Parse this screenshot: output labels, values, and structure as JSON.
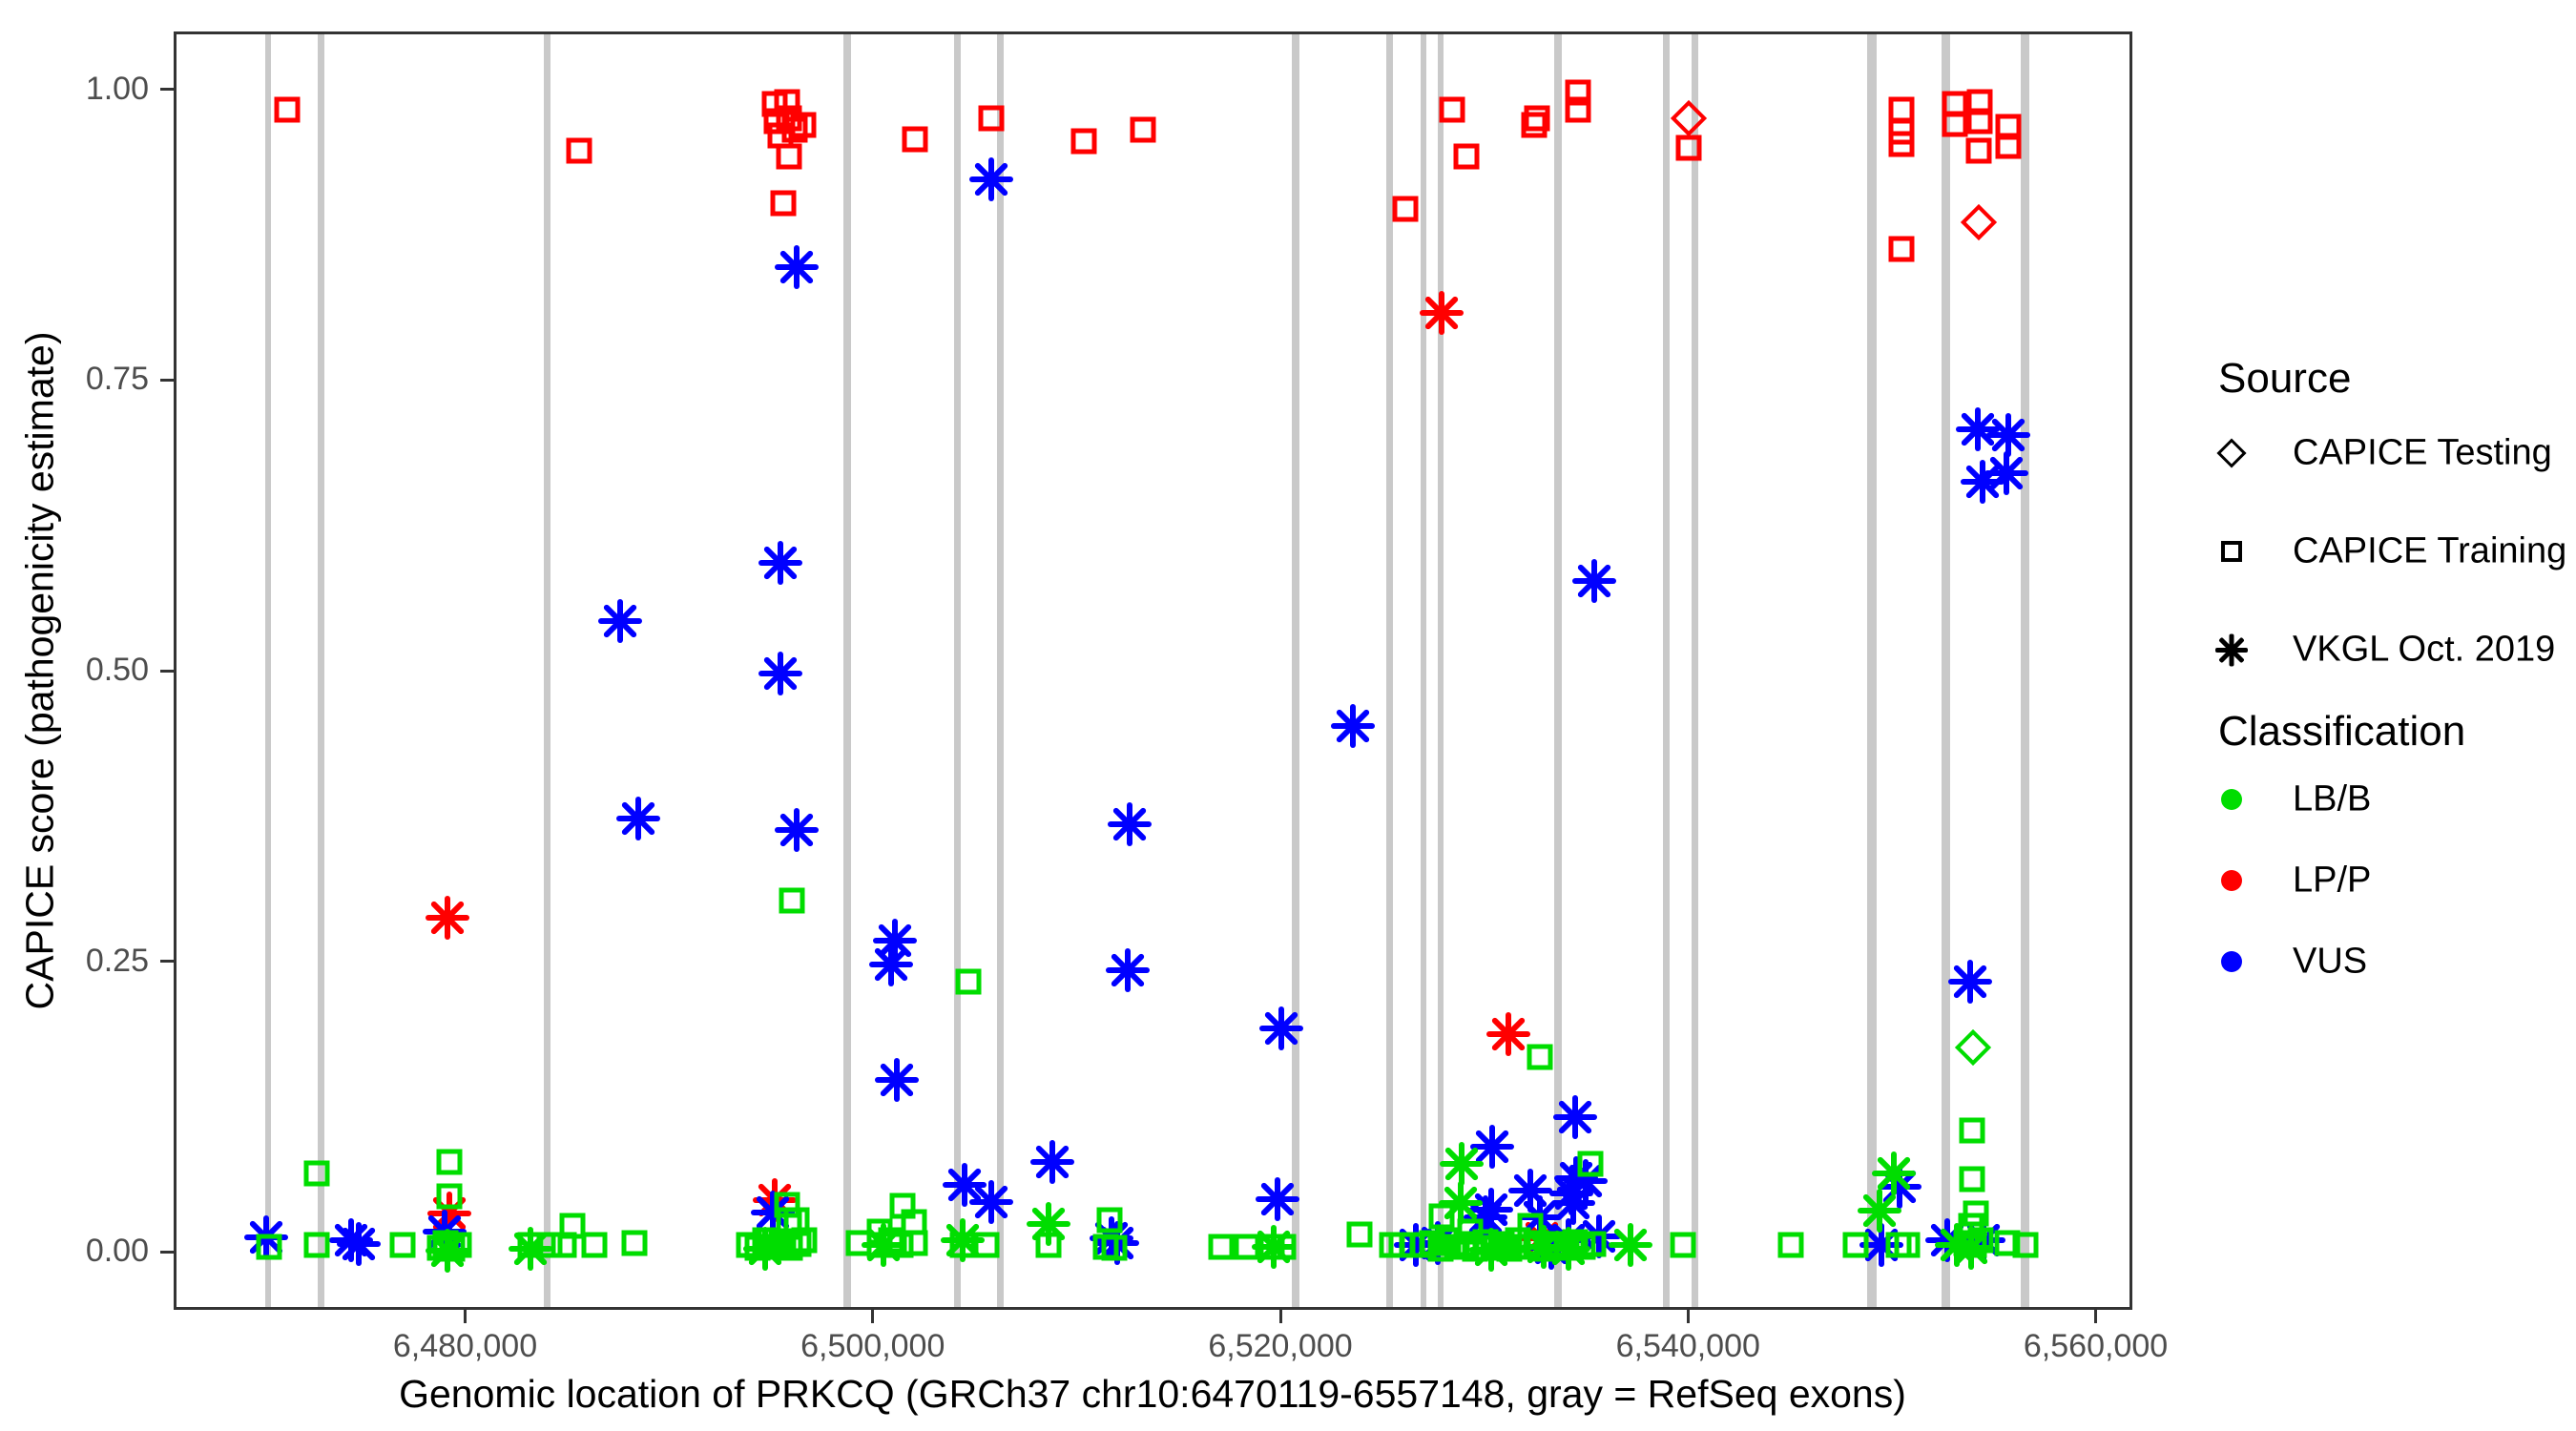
{
  "chart_data": {
    "type": "scatter",
    "xlabel": "Genomic location of PRKCQ (GRCh37 chr10:6470119-6557148, gray = RefSeq exons)",
    "ylabel": "CAPICE score (pathogenicity estimate)",
    "xlim": [
      6465700,
      6561800
    ],
    "ylim": [
      -0.05,
      1.05
    ],
    "grid": "off",
    "x_ticks": [
      {
        "value": 6480000,
        "label": "6,480,000"
      },
      {
        "value": 6500000,
        "label": "6,500,000"
      },
      {
        "value": 6520000,
        "label": "6,520,000"
      },
      {
        "value": 6540000,
        "label": "6,540,000"
      },
      {
        "value": 6560000,
        "label": "6,560,000"
      }
    ],
    "y_ticks": [
      {
        "value": 0.0,
        "label": "0.00"
      },
      {
        "value": 0.25,
        "label": "0.25"
      },
      {
        "value": 0.5,
        "label": "0.50"
      },
      {
        "value": 0.75,
        "label": "0.75"
      },
      {
        "value": 1.0,
        "label": "1.00"
      }
    ],
    "legend_position": "right",
    "legend": {
      "source_title": "Source",
      "source_items": [
        {
          "label": "CAPICE Testing",
          "marker": "diamond",
          "code": "test"
        },
        {
          "label": "CAPICE Training",
          "marker": "square",
          "code": "train"
        },
        {
          "label": "VKGL Oct. 2019",
          "marker": "asterisk",
          "code": "vkgl"
        }
      ],
      "classification_title": "Classification",
      "classification_items": [
        {
          "label": "LB/B",
          "color": "#00DD00",
          "code": "LB"
        },
        {
          "label": "LP/P",
          "color": "#FF0000",
          "code": "LP"
        },
        {
          "label": "VUS",
          "color": "#0000FF",
          "code": "VUS"
        }
      ]
    },
    "colors": {
      "LB": "#00DD00",
      "LP": "#FF0000",
      "VUS": "#0000FF",
      "exon": "#c9c9c9"
    },
    "exons_note": "gray vertical bars = RefSeq exons",
    "exons": [
      {
        "pos": 6470200,
        "w": 6
      },
      {
        "pos": 6472800,
        "w": 7
      },
      {
        "pos": 6483900,
        "w": 7
      },
      {
        "pos": 6498600,
        "w": 8
      },
      {
        "pos": 6504000,
        "w": 7
      },
      {
        "pos": 6506100,
        "w": 7
      },
      {
        "pos": 6520600,
        "w": 8
      },
      {
        "pos": 6525200,
        "w": 7
      },
      {
        "pos": 6526900,
        "w": 6
      },
      {
        "pos": 6527700,
        "w": 6
      },
      {
        "pos": 6533500,
        "w": 8
      },
      {
        "pos": 6538800,
        "w": 7
      },
      {
        "pos": 6540200,
        "w": 7
      },
      {
        "pos": 6548900,
        "w": 10
      },
      {
        "pos": 6552500,
        "w": 9
      },
      {
        "pos": 6556400,
        "w": 9
      }
    ],
    "point_format": [
      "genomic_position",
      "capice_score",
      "classification",
      "source"
    ],
    "points": [
      [
        6471150,
        0.985,
        "LP",
        "train"
      ],
      [
        6485450,
        0.95,
        "LP",
        "train"
      ],
      [
        6495050,
        0.99,
        "LP",
        "train"
      ],
      [
        6495650,
        0.992,
        "LP",
        "train"
      ],
      [
        6495150,
        0.975,
        "LP",
        "train"
      ],
      [
        6495750,
        0.978,
        "LP",
        "train"
      ],
      [
        6495350,
        0.963,
        "LP",
        "train"
      ],
      [
        6496050,
        0.968,
        "LP",
        "train"
      ],
      [
        6496450,
        0.972,
        "LP",
        "train"
      ],
      [
        6495750,
        0.945,
        "LP",
        "train"
      ],
      [
        6495450,
        0.905,
        "LP",
        "train"
      ],
      [
        6501950,
        0.96,
        "LP",
        "train"
      ],
      [
        6505680,
        0.978,
        "LP",
        "train"
      ],
      [
        6510200,
        0.958,
        "LP",
        "train"
      ],
      [
        6513130,
        0.968,
        "LP",
        "train"
      ],
      [
        6525990,
        0.9,
        "LP",
        "train"
      ],
      [
        6528280,
        0.985,
        "LP",
        "train"
      ],
      [
        6528980,
        0.945,
        "LP",
        "train"
      ],
      [
        6532330,
        0.972,
        "LP",
        "train"
      ],
      [
        6532470,
        0.978,
        "LP",
        "train"
      ],
      [
        6534480,
        1.0,
        "LP",
        "train"
      ],
      [
        6534480,
        0.985,
        "LP",
        "train"
      ],
      [
        6539880,
        0.952,
        "LP",
        "train"
      ],
      [
        6550320,
        0.985,
        "LP",
        "train"
      ],
      [
        6550320,
        0.966,
        "LP",
        "train"
      ],
      [
        6550320,
        0.956,
        "LP",
        "train"
      ],
      [
        6550320,
        0.865,
        "LP",
        "train"
      ],
      [
        6552930,
        0.99,
        "LP",
        "train"
      ],
      [
        6554190,
        0.992,
        "LP",
        "train"
      ],
      [
        6552930,
        0.973,
        "LP",
        "train"
      ],
      [
        6554190,
        0.975,
        "LP",
        "train"
      ],
      [
        6554100,
        0.95,
        "LP",
        "train"
      ],
      [
        6555590,
        0.97,
        "LP",
        "train"
      ],
      [
        6555590,
        0.954,
        "LP",
        "train"
      ],
      [
        6539880,
        0.978,
        "LP",
        "test"
      ],
      [
        6554100,
        0.888,
        "LP",
        "test"
      ],
      [
        6478980,
        0.29,
        "LP",
        "vkgl"
      ],
      [
        6527770,
        0.81,
        "LP",
        "vkgl"
      ],
      [
        6531030,
        0.19,
        "LP",
        "vkgl"
      ],
      [
        6479070,
        0.035,
        "LP",
        "vkgl"
      ],
      [
        6495060,
        0.047,
        "LP",
        "vkgl"
      ],
      [
        6532680,
        0.014,
        "LP",
        "vkgl"
      ],
      [
        6496120,
        0.85,
        "VUS",
        "vkgl"
      ],
      [
        6505680,
        0.925,
        "VUS",
        "vkgl"
      ],
      [
        6495330,
        0.595,
        "VUS",
        "vkgl"
      ],
      [
        6495330,
        0.5,
        "VUS",
        "vkgl"
      ],
      [
        6487460,
        0.545,
        "VUS",
        "vkgl"
      ],
      [
        6488340,
        0.375,
        "VUS",
        "vkgl"
      ],
      [
        6496120,
        0.365,
        "VUS",
        "vkgl"
      ],
      [
        6500970,
        0.27,
        "VUS",
        "vkgl"
      ],
      [
        6500780,
        0.25,
        "VUS",
        "vkgl"
      ],
      [
        6501020,
        0.15,
        "VUS",
        "vkgl"
      ],
      [
        6512450,
        0.37,
        "VUS",
        "vkgl"
      ],
      [
        6512360,
        0.245,
        "VUS",
        "vkgl"
      ],
      [
        6519900,
        0.195,
        "VUS",
        "vkgl"
      ],
      [
        6523430,
        0.455,
        "VUS",
        "vkgl"
      ],
      [
        6535250,
        0.58,
        "VUS",
        "vkgl"
      ],
      [
        6553720,
        0.235,
        "VUS",
        "vkgl"
      ],
      [
        6554090,
        0.71,
        "VUS",
        "vkgl"
      ],
      [
        6555580,
        0.705,
        "VUS",
        "vkgl"
      ],
      [
        6554320,
        0.665,
        "VUS",
        "vkgl"
      ],
      [
        6555490,
        0.672,
        "VUS",
        "vkgl"
      ],
      [
        6470120,
        0.015,
        "VUS",
        "vkgl"
      ],
      [
        6474250,
        0.012,
        "VUS",
        "vkgl"
      ],
      [
        6474650,
        0.009,
        "VUS",
        "vkgl"
      ],
      [
        6478850,
        0.02,
        "VUS",
        "vkgl"
      ],
      [
        6494970,
        0.036,
        "VUS",
        "vkgl"
      ],
      [
        6504370,
        0.06,
        "VUS",
        "vkgl"
      ],
      [
        6505680,
        0.045,
        "VUS",
        "vkgl"
      ],
      [
        6508660,
        0.08,
        "VUS",
        "vkgl"
      ],
      [
        6511550,
        0.014,
        "VUS",
        "vkgl"
      ],
      [
        6511850,
        0.01,
        "VUS",
        "vkgl"
      ],
      [
        6519700,
        0.048,
        "VUS",
        "vkgl"
      ],
      [
        6534310,
        0.118,
        "VUS",
        "vkgl"
      ],
      [
        6530260,
        0.093,
        "VUS",
        "vkgl"
      ],
      [
        6534360,
        0.066,
        "VUS",
        "vkgl"
      ],
      [
        6534130,
        0.053,
        "VUS",
        "vkgl"
      ],
      [
        6534220,
        0.044,
        "VUS",
        "vkgl"
      ],
      [
        6534820,
        0.063,
        "VUS",
        "vkgl"
      ],
      [
        6532120,
        0.055,
        "VUS",
        "vkgl"
      ],
      [
        6530210,
        0.039,
        "VUS",
        "vkgl"
      ],
      [
        6529930,
        0.032,
        "VUS",
        "vkgl"
      ],
      [
        6532570,
        0.032,
        "VUS",
        "vkgl"
      ],
      [
        6527580,
        0.01,
        "VUS",
        "vkgl"
      ],
      [
        6533150,
        0.006,
        "VUS",
        "vkgl"
      ],
      [
        6533990,
        0.012,
        "VUS",
        "vkgl"
      ],
      [
        6535480,
        0.016,
        "VUS",
        "vkgl"
      ],
      [
        6526500,
        0.008,
        "VUS",
        "vkgl"
      ],
      [
        6550230,
        0.058,
        "VUS",
        "vkgl"
      ],
      [
        6549340,
        0.008,
        "VUS",
        "vkgl"
      ],
      [
        6552600,
        0.012,
        "VUS",
        "vkgl"
      ],
      [
        6554370,
        0.012,
        "VUS",
        "vkgl"
      ],
      [
        6553860,
        0.178,
        "LB",
        "test"
      ],
      [
        6470260,
        0.007,
        "LB",
        "train"
      ],
      [
        6472590,
        0.07,
        "LB",
        "train"
      ],
      [
        6472590,
        0.008,
        "LB",
        "train"
      ],
      [
        6476780,
        0.008,
        "LB",
        "train"
      ],
      [
        6479070,
        0.08,
        "LB",
        "train"
      ],
      [
        6479070,
        0.05,
        "LB",
        "train"
      ],
      [
        6478600,
        0.006,
        "LB",
        "train"
      ],
      [
        6478900,
        0.01,
        "LB",
        "train"
      ],
      [
        6479250,
        0.005,
        "LB",
        "train"
      ],
      [
        6479550,
        0.008,
        "LB",
        "train"
      ],
      [
        6483080,
        0.008,
        "LB",
        "train"
      ],
      [
        6484010,
        0.008,
        "LB",
        "train"
      ],
      [
        6484710,
        0.008,
        "LB",
        "train"
      ],
      [
        6485130,
        0.025,
        "LB",
        "train"
      ],
      [
        6486200,
        0.008,
        "LB",
        "train"
      ],
      [
        6488160,
        0.01,
        "LB",
        "train"
      ],
      [
        6493800,
        0.008,
        "LB",
        "train"
      ],
      [
        6494200,
        0.006,
        "LB",
        "train"
      ],
      [
        6494600,
        0.012,
        "LB",
        "train"
      ],
      [
        6495000,
        0.007,
        "LB",
        "train"
      ],
      [
        6495400,
        0.01,
        "LB",
        "train"
      ],
      [
        6495800,
        0.006,
        "LB",
        "train"
      ],
      [
        6496200,
        0.009,
        "LB",
        "train"
      ],
      [
        6496500,
        0.012,
        "LB",
        "train"
      ],
      [
        6495660,
        0.043,
        "LB",
        "train"
      ],
      [
        6495750,
        0.03,
        "LB",
        "train"
      ],
      [
        6496120,
        0.03,
        "LB",
        "train"
      ],
      [
        6495890,
        0.305,
        "LB",
        "train"
      ],
      [
        6499150,
        0.01,
        "LB",
        "train"
      ],
      [
        6500180,
        0.02,
        "LB",
        "train"
      ],
      [
        6500180,
        0.008,
        "LB",
        "train"
      ],
      [
        6500780,
        0.012,
        "LB",
        "train"
      ],
      [
        6501250,
        0.008,
        "LB",
        "train"
      ],
      [
        6501340,
        0.042,
        "LB",
        "train"
      ],
      [
        6501900,
        0.028,
        "LB",
        "train"
      ],
      [
        6501950,
        0.01,
        "LB",
        "train"
      ],
      [
        6504280,
        0.008,
        "LB",
        "train"
      ],
      [
        6504560,
        0.235,
        "LB",
        "train"
      ],
      [
        6505440,
        0.008,
        "LB",
        "train"
      ],
      [
        6508470,
        0.008,
        "LB",
        "train"
      ],
      [
        6511460,
        0.03,
        "LB",
        "train"
      ],
      [
        6511300,
        0.007,
        "LB",
        "train"
      ],
      [
        6511700,
        0.006,
        "LB",
        "train"
      ],
      [
        6516960,
        0.007,
        "LB",
        "train"
      ],
      [
        6518210,
        0.007,
        "LB",
        "train"
      ],
      [
        6519420,
        0.007,
        "LB",
        "train"
      ],
      [
        6519980,
        0.007,
        "LB",
        "train"
      ],
      [
        6523760,
        0.017,
        "LB",
        "train"
      ],
      [
        6525350,
        0.008,
        "LB",
        "train"
      ],
      [
        6525800,
        0.008,
        "LB",
        "train"
      ],
      [
        6526300,
        0.008,
        "LB",
        "train"
      ],
      [
        6532570,
        0.17,
        "LB",
        "train"
      ],
      [
        6535080,
        0.078,
        "LB",
        "train"
      ],
      [
        6527760,
        0.033,
        "LB",
        "train"
      ],
      [
        6529160,
        0.02,
        "LB",
        "train"
      ],
      [
        6532100,
        0.025,
        "LB",
        "train"
      ],
      [
        6526900,
        0.008,
        "LB",
        "train"
      ],
      [
        6527300,
        0.01,
        "LB",
        "train"
      ],
      [
        6527700,
        0.005,
        "LB",
        "train"
      ],
      [
        6528100,
        0.012,
        "LB",
        "train"
      ],
      [
        6528500,
        0.007,
        "LB",
        "train"
      ],
      [
        6529000,
        0.009,
        "LB",
        "train"
      ],
      [
        6529400,
        0.005,
        "LB",
        "train"
      ],
      [
        6529900,
        0.011,
        "LB",
        "train"
      ],
      [
        6530300,
        0.006,
        "LB",
        "train"
      ],
      [
        6530700,
        0.009,
        "LB",
        "train"
      ],
      [
        6531100,
        0.005,
        "LB",
        "train"
      ],
      [
        6531500,
        0.012,
        "LB",
        "train"
      ],
      [
        6532000,
        0.007,
        "LB",
        "train"
      ],
      [
        6532400,
        0.01,
        "LB",
        "train"
      ],
      [
        6532900,
        0.005,
        "LB",
        "train"
      ],
      [
        6533400,
        0.009,
        "LB",
        "train"
      ],
      [
        6533900,
        0.006,
        "LB",
        "train"
      ],
      [
        6534300,
        0.011,
        "LB",
        "train"
      ],
      [
        6534700,
        0.007,
        "LB",
        "train"
      ],
      [
        6535200,
        0.009,
        "LB",
        "train"
      ],
      [
        6539600,
        0.008,
        "LB",
        "train"
      ],
      [
        6544920,
        0.008,
        "LB",
        "train"
      ],
      [
        6548090,
        0.008,
        "LB",
        "train"
      ],
      [
        6550180,
        0.008,
        "LB",
        "train"
      ],
      [
        6550600,
        0.008,
        "LB",
        "train"
      ],
      [
        6553800,
        0.107,
        "LB",
        "train"
      ],
      [
        6553800,
        0.065,
        "LB",
        "train"
      ],
      [
        6554000,
        0.035,
        "LB",
        "train"
      ],
      [
        6553750,
        0.025,
        "LB",
        "train"
      ],
      [
        6553500,
        0.01,
        "LB",
        "train"
      ],
      [
        6553900,
        0.008,
        "LB",
        "train"
      ],
      [
        6554200,
        0.012,
        "LB",
        "train"
      ],
      [
        6555540,
        0.01,
        "LB",
        "train"
      ],
      [
        6556400,
        0.008,
        "LB",
        "train"
      ],
      [
        6483080,
        0.005,
        "LB",
        "vkgl"
      ],
      [
        6479000,
        0.003,
        "LB",
        "vkgl"
      ],
      [
        6494600,
        0.005,
        "LB",
        "vkgl"
      ],
      [
        6500400,
        0.008,
        "LB",
        "vkgl"
      ],
      [
        6504280,
        0.012,
        "LB",
        "vkgl"
      ],
      [
        6508470,
        0.026,
        "LB",
        "vkgl"
      ],
      [
        6519520,
        0.007,
        "LB",
        "vkgl"
      ],
      [
        6528770,
        0.078,
        "LB",
        "vkgl"
      ],
      [
        6528720,
        0.044,
        "LB",
        "vkgl"
      ],
      [
        6549950,
        0.07,
        "LB",
        "vkgl"
      ],
      [
        6549250,
        0.038,
        "LB",
        "vkgl"
      ],
      [
        6537020,
        0.008,
        "LB",
        "vkgl"
      ],
      [
        6530200,
        0.004,
        "LB",
        "vkgl"
      ],
      [
        6532800,
        0.007,
        "LB",
        "vkgl"
      ],
      [
        6534000,
        0.005,
        "LB",
        "vkgl"
      ],
      [
        6553070,
        0.008,
        "LB",
        "vkgl"
      ],
      [
        6553770,
        0.006,
        "LB",
        "vkgl"
      ]
    ]
  }
}
